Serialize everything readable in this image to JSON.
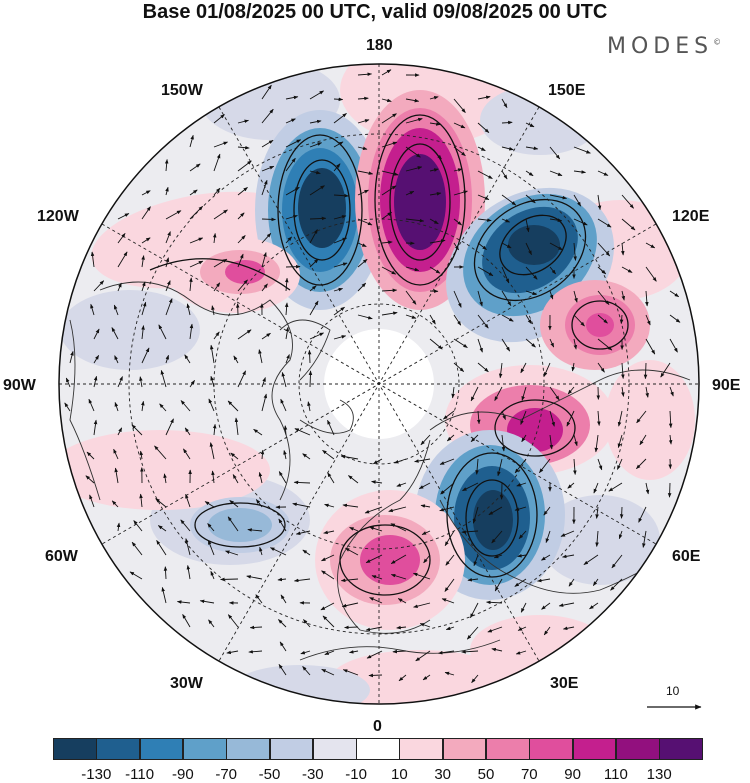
{
  "header": {
    "title": "Base 01/08/2025 00 UTC, valid 09/08/2025 00 UTC",
    "brand": "MODES",
    "brand_mark": "©"
  },
  "map": {
    "projection": "north-polar-stereographic",
    "longitude_labels": {
      "top": "180",
      "top_left": "150W",
      "top_right": "150E",
      "upper_left": "120W",
      "upper_right": "120E",
      "left": "90W",
      "right": "90E",
      "lower_left": "60W",
      "lower_right": "60E",
      "bottom_left": "30W",
      "bottom_right": "30E",
      "bottom": "0"
    },
    "reference_vector_label": "10"
  },
  "colorbar": {
    "colors": [
      "#163e5f",
      "#1f5f8f",
      "#2f7fb5",
      "#5fa0c9",
      "#97b9d8",
      "#c1cde4",
      "#e4e4ee",
      "#ffffff",
      "#fad7df",
      "#f3aabe",
      "#ec7eab",
      "#e04e9d",
      "#c41f8e",
      "#92107e",
      "#561072"
    ],
    "labels": [
      "-130",
      "-110",
      "-90",
      "-70",
      "-50",
      "-30",
      "-10",
      "10",
      "30",
      "50",
      "70",
      "90",
      "110",
      "130"
    ]
  }
}
